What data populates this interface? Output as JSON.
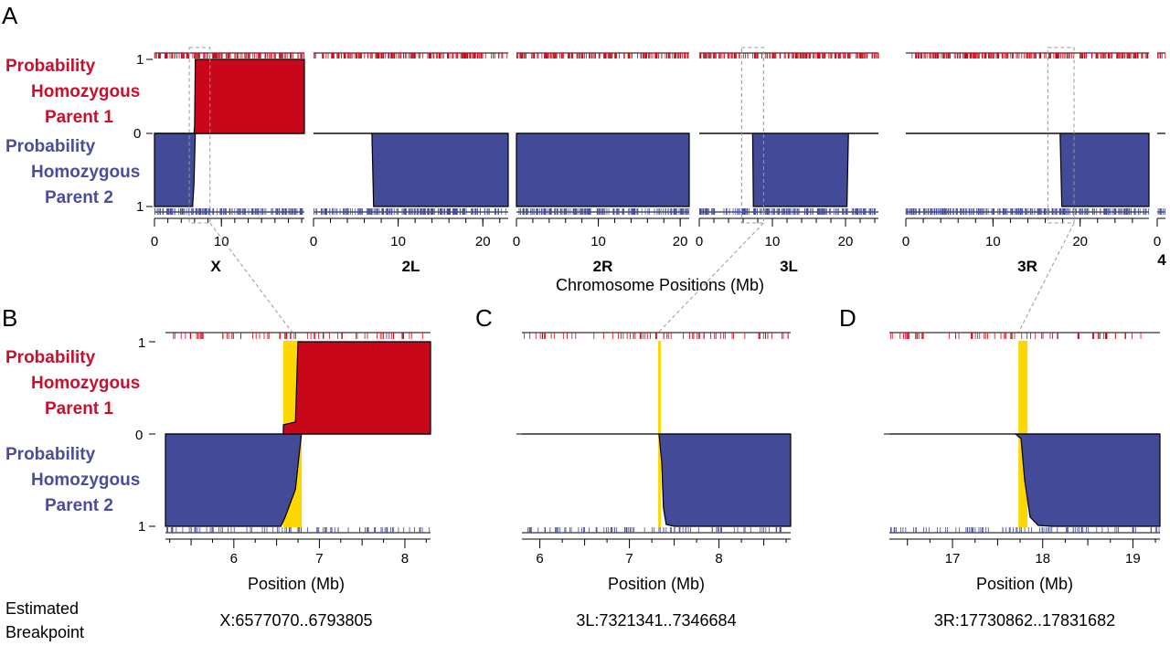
{
  "colors": {
    "parent1": "#c8081a",
    "parent2": "#434b99",
    "parent1_label": "#c8102e",
    "parent2_label": "#4a4d9c",
    "breakpoint": "#ffd700",
    "zoom_box": "#999999"
  },
  "labels": {
    "panel_a": "A",
    "panel_b": "B",
    "panel_c": "C",
    "panel_d": "D",
    "parent1": [
      "Probability",
      "Homozygous",
      "Parent 1"
    ],
    "parent2": [
      "Probability",
      "Homozygous",
      "Parent 2"
    ],
    "prob_one_top": "1",
    "prob_zero": "0",
    "prob_one_bottom": "1",
    "estimated_breakpoint": [
      "Estimated",
      "Breakpoint"
    ]
  },
  "chart_data": [
    {
      "panel": "A",
      "type": "area",
      "xlabel": "Chromosome Positions (Mb)",
      "ylim_parent1": [
        0,
        1
      ],
      "ylim_parent2": [
        0,
        1
      ],
      "chromosomes": [
        {
          "name": "X",
          "length": 22.4,
          "ticks": [
            0,
            10
          ],
          "parent1": [
            [
              0,
              0
            ],
            [
              5.9,
              0
            ],
            [
              6.0,
              0.1
            ],
            [
              6.1,
              1
            ],
            [
              22.4,
              1
            ]
          ],
          "parent2": [
            [
              0,
              1
            ],
            [
              5.7,
              1
            ],
            [
              5.9,
              0.7
            ],
            [
              6.1,
              0
            ],
            [
              22.4,
              0
            ]
          ],
          "zoom_region": [
            5.2,
            8.3
          ]
        },
        {
          "name": "2L",
          "length": 23.0,
          "ticks": [
            0,
            10,
            20
          ],
          "parent1": [],
          "parent2": [
            [
              0,
              0
            ],
            [
              6.9,
              0
            ],
            [
              7.1,
              1
            ],
            [
              23.0,
              1
            ]
          ]
        },
        {
          "name": "2R",
          "length": 21.1,
          "ticks": [
            0,
            10,
            20
          ],
          "parent1": [],
          "parent2": [
            [
              0,
              1
            ],
            [
              21.1,
              1
            ]
          ]
        },
        {
          "name": "3L",
          "length": 24.5,
          "ticks": [
            0,
            10,
            20
          ],
          "parent1": [],
          "parent2": [
            [
              0,
              0
            ],
            [
              7.3,
              0
            ],
            [
              7.4,
              1
            ],
            [
              20.2,
              1
            ],
            [
              20.4,
              0
            ],
            [
              24.5,
              0
            ]
          ],
          "zoom_region": [
            5.8,
            8.8
          ]
        },
        {
          "name": "3R",
          "length": 27.9,
          "ticks": [
            0,
            10,
            20
          ],
          "parent1": [],
          "parent2": [
            [
              0,
              0
            ],
            [
              17.7,
              0
            ],
            [
              17.9,
              1
            ],
            [
              27.9,
              1
            ]
          ],
          "zoom_region": [
            16.3,
            19.3
          ]
        },
        {
          "name": "4",
          "length": 1.35,
          "ticks": [
            0
          ],
          "parent1": [],
          "parent2": []
        }
      ]
    },
    {
      "panel": "B",
      "type": "area",
      "xlabel": "Position (Mb)",
      "xlim": [
        5.2,
        8.3
      ],
      "xticks": [
        6,
        7,
        8
      ],
      "breakpoint_region": [
        6.57707,
        6.793805
      ],
      "breakpoint_label": "X:6577070..6793805",
      "parent1": [
        [
          6.577,
          0
        ],
        [
          6.58,
          0.1
        ],
        [
          6.72,
          0.13
        ],
        [
          6.75,
          1
        ],
        [
          8.3,
          1
        ]
      ],
      "parent2": [
        [
          5.2,
          1
        ],
        [
          6.55,
          1
        ],
        [
          6.6,
          0.9
        ],
        [
          6.72,
          0.6
        ],
        [
          6.79,
          0
        ]
      ]
    },
    {
      "panel": "C",
      "type": "area",
      "xlabel": "Position (Mb)",
      "xlim": [
        5.8,
        8.8
      ],
      "xticks": [
        6,
        7,
        8
      ],
      "breakpoint_region": [
        7.321341,
        7.346684
      ],
      "breakpoint_label": "3L:7321341..7346684",
      "parent1": [],
      "parent2": [
        [
          7.33,
          0
        ],
        [
          7.36,
          0.3
        ],
        [
          7.38,
          0.8
        ],
        [
          7.41,
          0.98
        ],
        [
          7.5,
          1
        ],
        [
          8.8,
          1
        ]
      ]
    },
    {
      "panel": "D",
      "type": "area",
      "xlabel": "Position (Mb)",
      "xlim": [
        16.3,
        19.3
      ],
      "xticks": [
        17,
        18,
        19
      ],
      "breakpoint_region": [
        17.730862,
        17.831682
      ],
      "breakpoint_label": "3R:17730862..17831682",
      "parent1": [],
      "parent2": [
        [
          17.7,
          0
        ],
        [
          17.76,
          0.05
        ],
        [
          17.8,
          0.5
        ],
        [
          17.86,
          0.9
        ],
        [
          17.95,
          0.99
        ],
        [
          18.1,
          1
        ],
        [
          19.3,
          1
        ]
      ]
    }
  ]
}
